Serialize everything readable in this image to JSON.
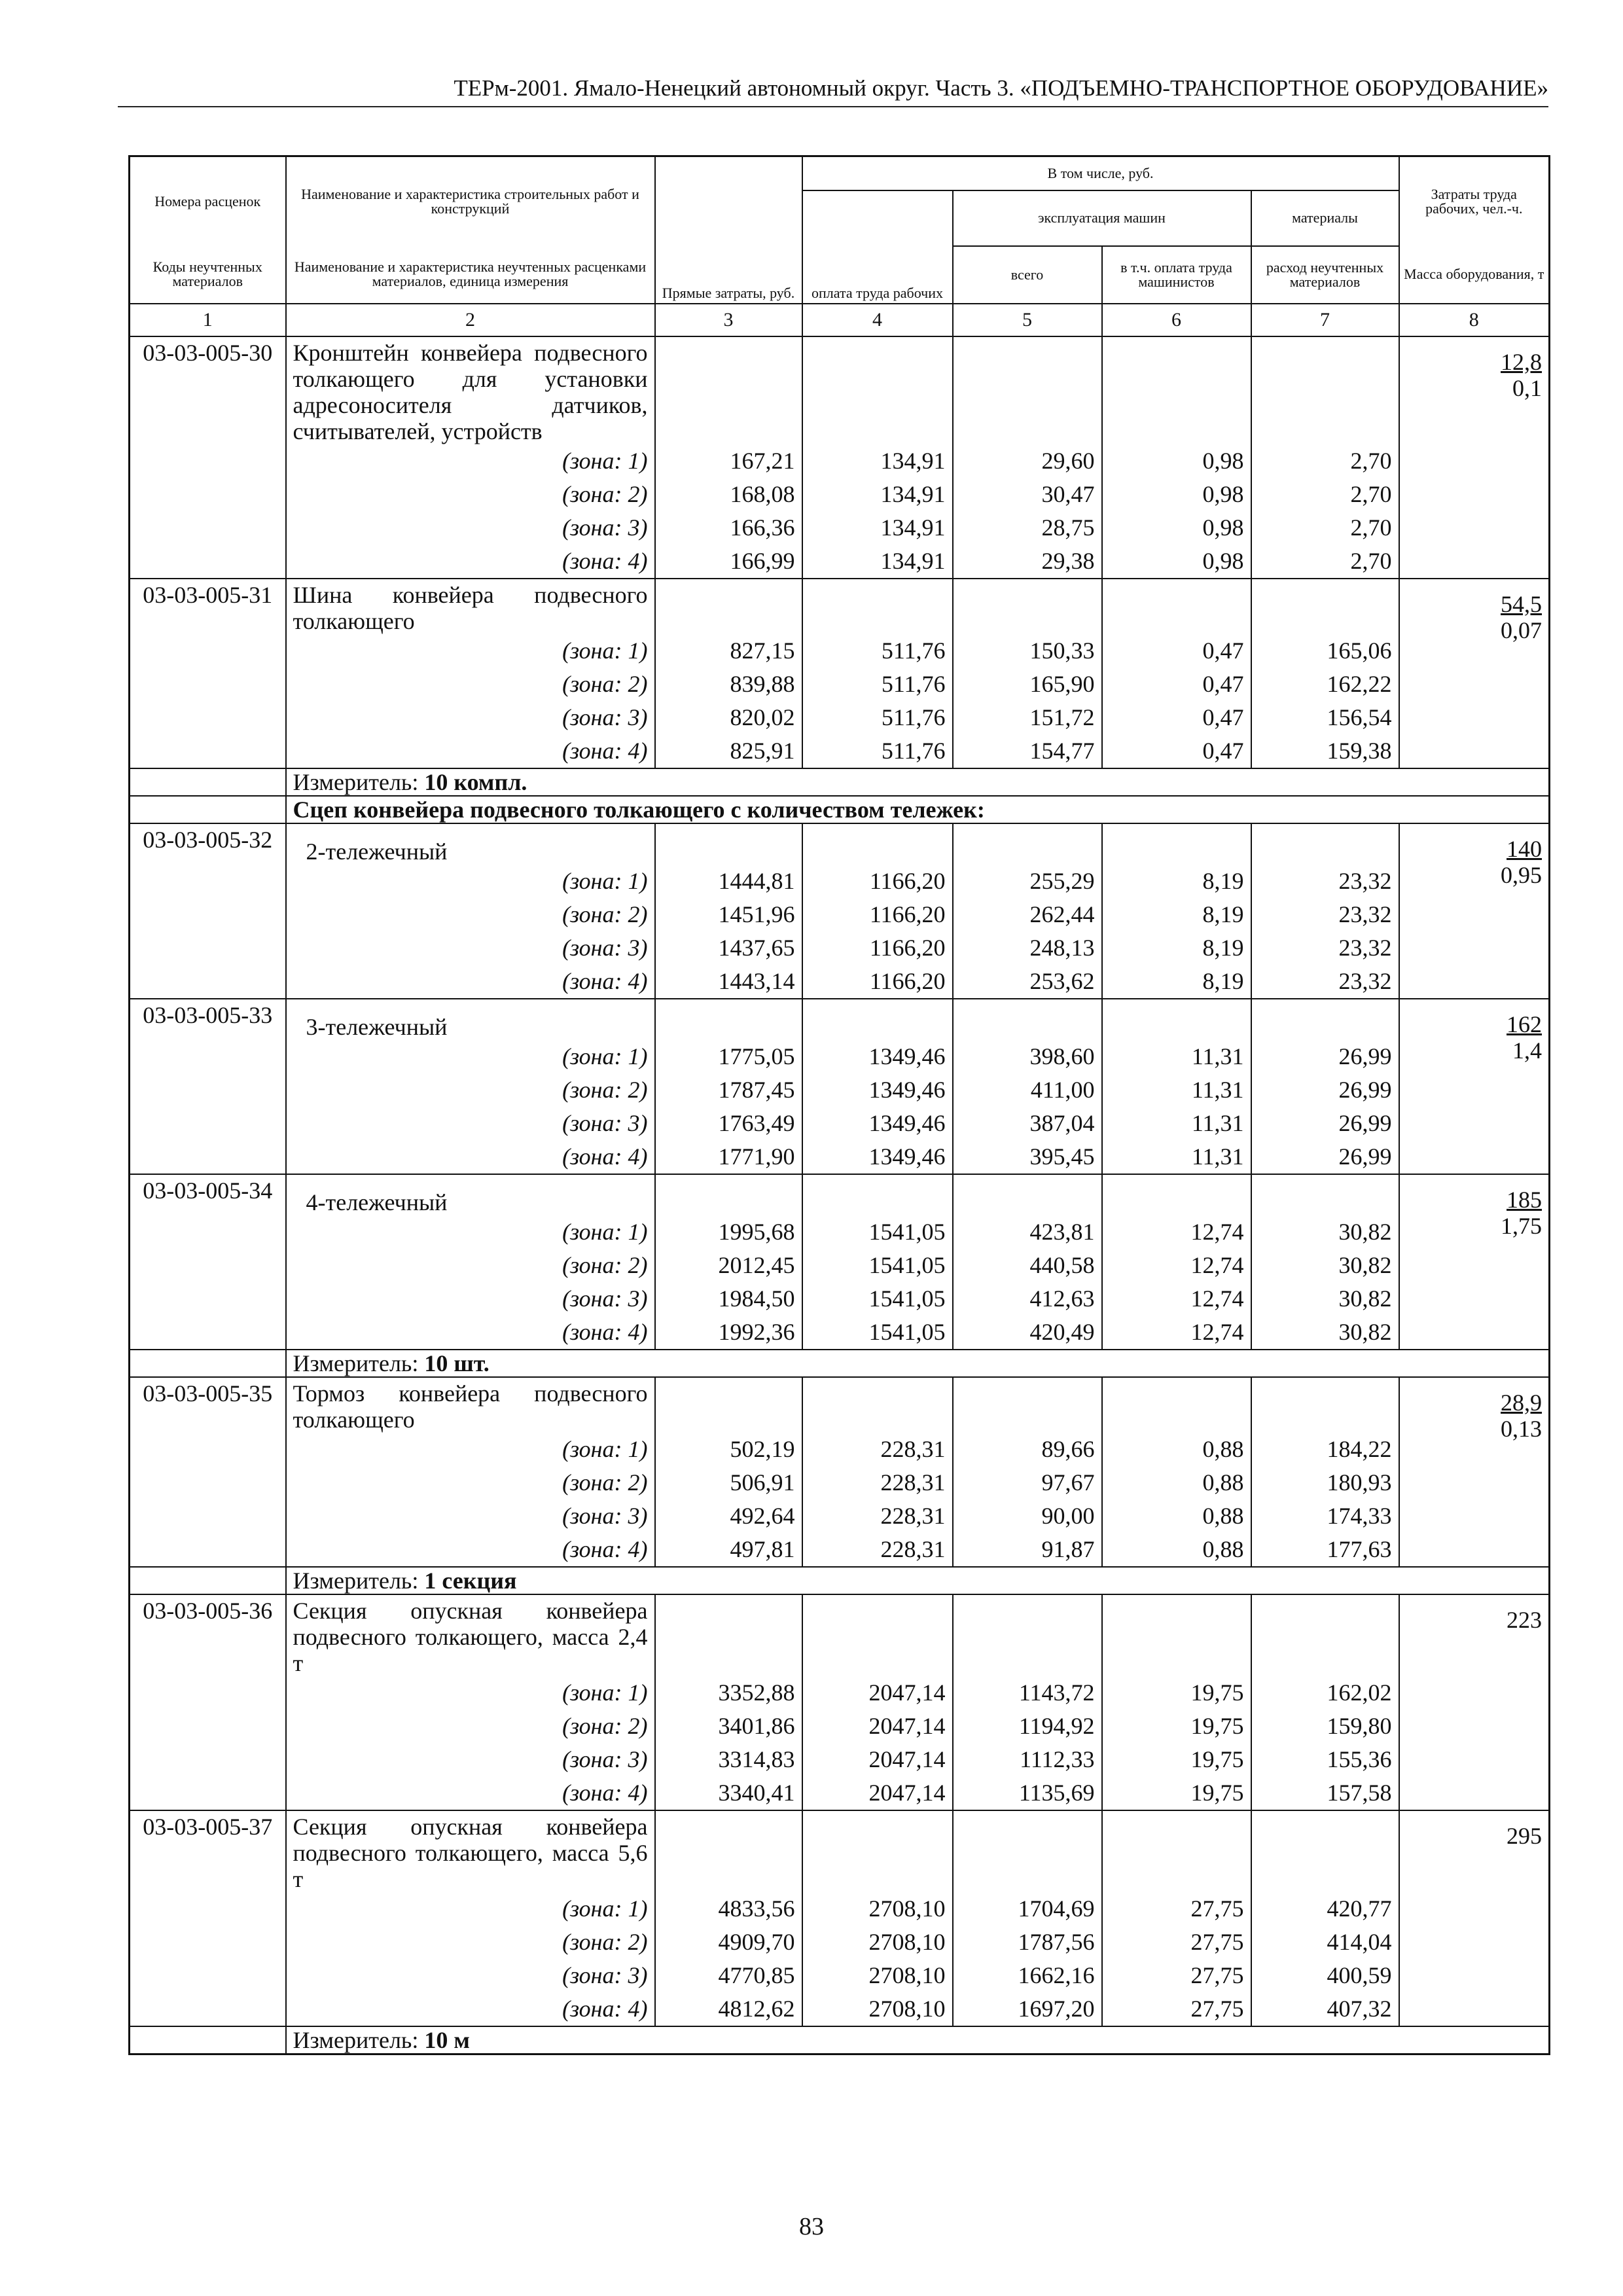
{
  "header": "ТЕРм-2001. Ямало-Ненецкий автономный округ. Часть 3. «ПОДЪЕМНО-ТРАНСПОРТНОЕ ОБОРУДОВАНИЕ»",
  "table": {
    "head": {
      "codes_top": "Номера расценок",
      "codes_bottom": "Коды неучтенных материалов",
      "name_top": "Наименование и характеристика строительных работ и конструкций",
      "name_bottom": "Наименование и характеристика неучтенных расценками материалов, единица измерения",
      "direct": "Прямые затраты, руб.",
      "incl": "В том числе, руб.",
      "wages": "оплата труда рабочих",
      "machines": "эксплуатация машин",
      "machines_total": "всего",
      "machinists": "в т.ч. оплата труда машинистов",
      "materials": "материалы",
      "materials_bottom": "расход неучтенных материалов",
      "labor_top": "Затраты труда рабочих, чел.-ч.",
      "labor_bottom": "Масса оборудования, т"
    },
    "column_numbers": [
      "1",
      "2",
      "3",
      "4",
      "5",
      "6",
      "7",
      "8"
    ],
    "blocks": [
      {
        "code": "03-03-005-30",
        "name": "Кронштейн конвейера подвесного толкающего для установки адресоносителя датчиков, считывателей, устройств",
        "labor": "12,8",
        "mass": "0,1",
        "zones": [
          [
            "(зона: 1)",
            "167,21",
            "134,91",
            "29,60",
            "0,98",
            "2,70"
          ],
          [
            "(зона: 2)",
            "168,08",
            "134,91",
            "30,47",
            "0,98",
            "2,70"
          ],
          [
            "(зона: 3)",
            "166,36",
            "134,91",
            "28,75",
            "0,98",
            "2,70"
          ],
          [
            "(зона: 4)",
            "166,99",
            "134,91",
            "29,38",
            "0,98",
            "2,70"
          ]
        ]
      },
      {
        "code": "03-03-005-31",
        "name": "Шина конвейера подвесного толкающего",
        "labor": "54,5",
        "mass": "0,07",
        "zones": [
          [
            "(зона: 1)",
            "827,15",
            "511,76",
            "150,33",
            "0,47",
            "165,06"
          ],
          [
            "(зона: 2)",
            "839,88",
            "511,76",
            "165,90",
            "0,47",
            "162,22"
          ],
          [
            "(зона: 3)",
            "820,02",
            "511,76",
            "151,72",
            "0,47",
            "156,54"
          ],
          [
            "(зона: 4)",
            "825,91",
            "511,76",
            "154,77",
            "0,47",
            "159,38"
          ]
        ]
      },
      {
        "measure_label": "Измеритель:",
        "measure_value": "10 компл."
      },
      {
        "group": "Сцеп конвейера подвесного толкающего с количеством тележек:"
      },
      {
        "code": "03-03-005-32",
        "name": "2-тележечный",
        "labor": "140",
        "mass": "0,95",
        "zones": [
          [
            "(зона: 1)",
            "1444,81",
            "1166,20",
            "255,29",
            "8,19",
            "23,32"
          ],
          [
            "(зона: 2)",
            "1451,96",
            "1166,20",
            "262,44",
            "8,19",
            "23,32"
          ],
          [
            "(зона: 3)",
            "1437,65",
            "1166,20",
            "248,13",
            "8,19",
            "23,32"
          ],
          [
            "(зона: 4)",
            "1443,14",
            "1166,20",
            "253,62",
            "8,19",
            "23,32"
          ]
        ]
      },
      {
        "code": "03-03-005-33",
        "name": "3-тележечный",
        "labor": "162",
        "mass": "1,4",
        "zones": [
          [
            "(зона: 1)",
            "1775,05",
            "1349,46",
            "398,60",
            "11,31",
            "26,99"
          ],
          [
            "(зона: 2)",
            "1787,45",
            "1349,46",
            "411,00",
            "11,31",
            "26,99"
          ],
          [
            "(зона: 3)",
            "1763,49",
            "1349,46",
            "387,04",
            "11,31",
            "26,99"
          ],
          [
            "(зона: 4)",
            "1771,90",
            "1349,46",
            "395,45",
            "11,31",
            "26,99"
          ]
        ]
      },
      {
        "code": "03-03-005-34",
        "name": "4-тележечный",
        "labor": "185",
        "mass": "1,75",
        "zones": [
          [
            "(зона: 1)",
            "1995,68",
            "1541,05",
            "423,81",
            "12,74",
            "30,82"
          ],
          [
            "(зона: 2)",
            "2012,45",
            "1541,05",
            "440,58",
            "12,74",
            "30,82"
          ],
          [
            "(зона: 3)",
            "1984,50",
            "1541,05",
            "412,63",
            "12,74",
            "30,82"
          ],
          [
            "(зона: 4)",
            "1992,36",
            "1541,05",
            "420,49",
            "12,74",
            "30,82"
          ]
        ]
      },
      {
        "measure_label": "Измеритель:",
        "measure_value": "10 шт."
      },
      {
        "code": "03-03-005-35",
        "name": "Тормоз конвейера подвесного толкающего",
        "labor": "28,9",
        "mass": "0,13",
        "zones": [
          [
            "(зона: 1)",
            "502,19",
            "228,31",
            "89,66",
            "0,88",
            "184,22"
          ],
          [
            "(зона: 2)",
            "506,91",
            "228,31",
            "97,67",
            "0,88",
            "180,93"
          ],
          [
            "(зона: 3)",
            "492,64",
            "228,31",
            "90,00",
            "0,88",
            "174,33"
          ],
          [
            "(зона: 4)",
            "497,81",
            "228,31",
            "91,87",
            "0,88",
            "177,63"
          ]
        ]
      },
      {
        "measure_label": "Измеритель:",
        "measure_value": "1 секция"
      },
      {
        "code": "03-03-005-36",
        "name": "Секция опускная конвейера подвесного толкающего, масса 2,4 т",
        "labor": "223",
        "zones": [
          [
            "(зона: 1)",
            "3352,88",
            "2047,14",
            "1143,72",
            "19,75",
            "162,02"
          ],
          [
            "(зона: 2)",
            "3401,86",
            "2047,14",
            "1194,92",
            "19,75",
            "159,80"
          ],
          [
            "(зона: 3)",
            "3314,83",
            "2047,14",
            "1112,33",
            "19,75",
            "155,36"
          ],
          [
            "(зона: 4)",
            "3340,41",
            "2047,14",
            "1135,69",
            "19,75",
            "157,58"
          ]
        ]
      },
      {
        "code": "03-03-005-37",
        "name": "Секция опускная конвейера подвесного толкающего, масса 5,6 т",
        "labor": "295",
        "zones": [
          [
            "(зона: 1)",
            "4833,56",
            "2708,10",
            "1704,69",
            "27,75",
            "420,77"
          ],
          [
            "(зона: 2)",
            "4909,70",
            "2708,10",
            "1787,56",
            "27,75",
            "414,04"
          ],
          [
            "(зона: 3)",
            "4770,85",
            "2708,10",
            "1662,16",
            "27,75",
            "400,59"
          ],
          [
            "(зона: 4)",
            "4812,62",
            "2708,10",
            "1697,20",
            "27,75",
            "407,32"
          ]
        ]
      },
      {
        "measure_label": "Измеритель:",
        "measure_value": "10 м"
      }
    ]
  },
  "page_number": "83"
}
